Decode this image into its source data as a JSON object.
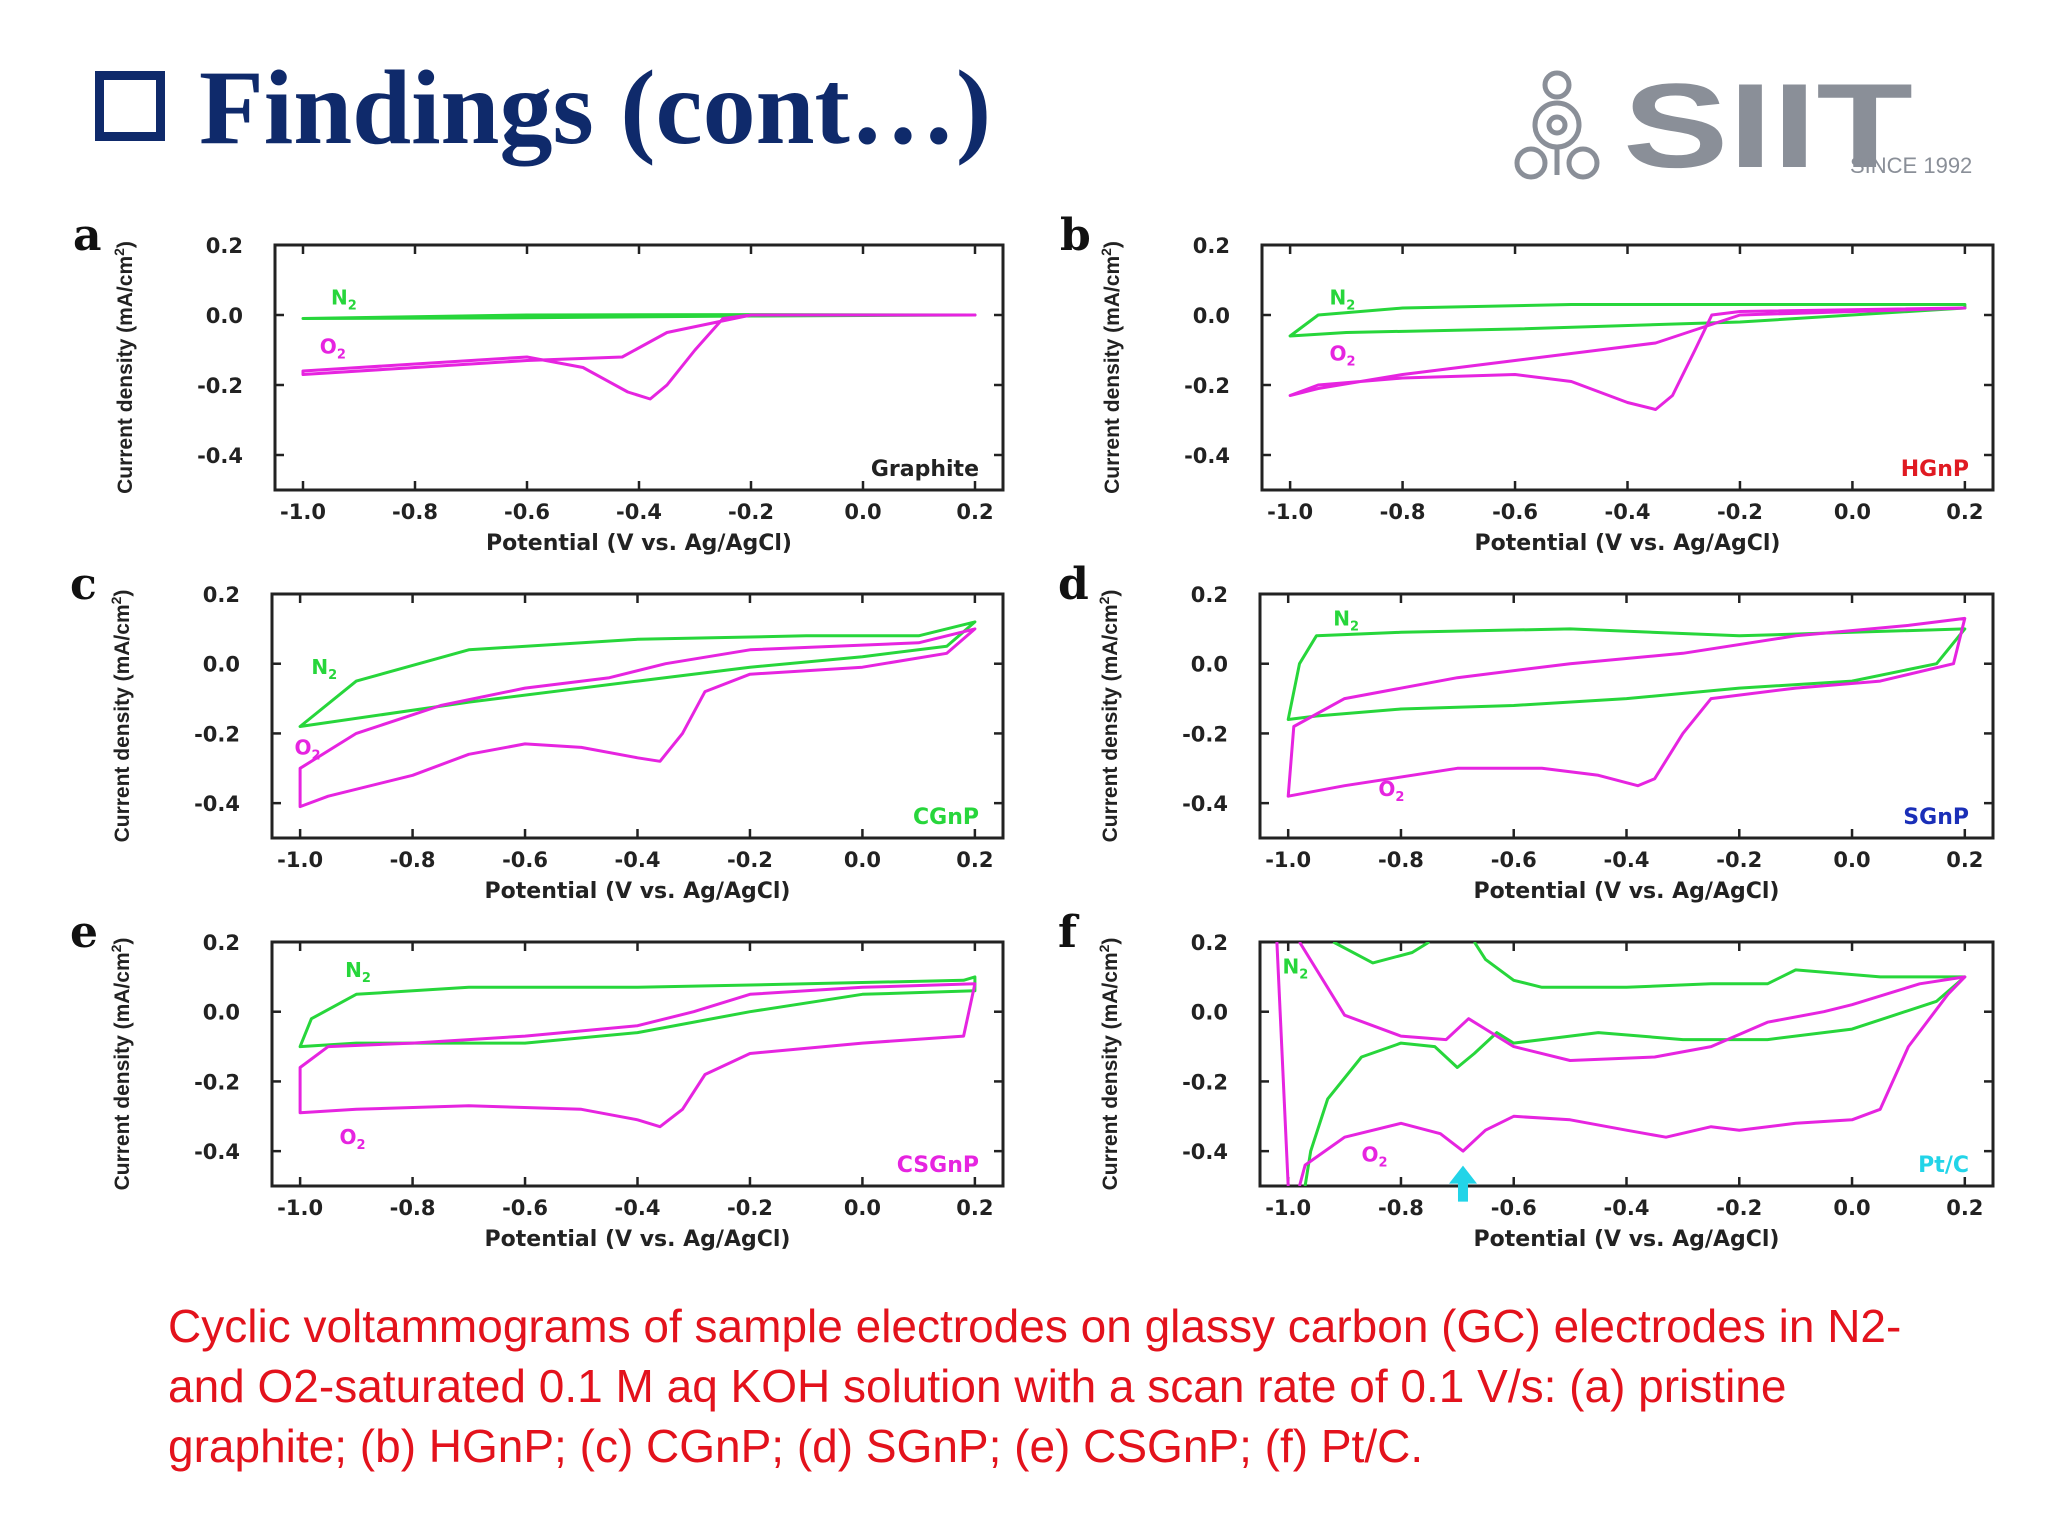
{
  "slide": {
    "title": "Findings (cont…)",
    "caption": "Cyclic voltammograms of sample electrodes on glassy carbon (GC) electrodes in N2- and O2-saturated 0.1 M aq KOH solution with a scan rate of 0.1 V/s: (a) pristine graphite; (b) HGnP; (c) CGnP; (d) SGnP; (e) CSGnP; (f) Pt/C.",
    "logo": {
      "text": "SIIT",
      "since": "SINCE 1992"
    }
  },
  "colors": {
    "title": "#0f2a6b",
    "n2": "#27d63b",
    "o2": "#e624e0",
    "caption": "#e3121c",
    "arrow": "#22d4e8"
  },
  "axis_text": {
    "xlabel": "Potential (V vs. Ag/AgCl)",
    "ylabel": "Current density (mA/cm",
    "ylabel_sup": "2",
    "ylabel_close": ")",
    "xticks": [
      "-1.0",
      "-0.8",
      "-0.6",
      "-0.4",
      "-0.2",
      "0.0",
      "0.2"
    ],
    "yticks": [
      "0.2",
      "0.0",
      "-0.2",
      "-0.4"
    ]
  },
  "chart_data": [
    {
      "panel": "a",
      "type": "line",
      "sample": "Graphite",
      "sample_color": "#222222",
      "xlim": [
        -1.05,
        0.25
      ],
      "ylim": [
        -0.5,
        0.2
      ],
      "series": [
        {
          "name": "N2",
          "loop": true,
          "points": [
            [
              -1.0,
              -0.01
            ],
            [
              -0.6,
              -0.008
            ],
            [
              -0.2,
              -0.003
            ],
            [
              0.2,
              0.0
            ],
            [
              -0.2,
              0.001
            ],
            [
              -0.6,
              0.0
            ],
            [
              -1.0,
              -0.01
            ]
          ]
        },
        {
          "name": "O2",
          "loop": true,
          "points": [
            [
              -1.0,
              -0.16
            ],
            [
              -0.9,
              -0.15
            ],
            [
              -0.7,
              -0.13
            ],
            [
              -0.6,
              -0.12
            ],
            [
              -0.5,
              -0.15
            ],
            [
              -0.42,
              -0.22
            ],
            [
              -0.38,
              -0.24
            ],
            [
              -0.35,
              -0.2
            ],
            [
              -0.3,
              -0.1
            ],
            [
              -0.25,
              -0.01
            ],
            [
              -0.2,
              0.0
            ],
            [
              0.2,
              0.0
            ],
            [
              -0.2,
              0.0
            ],
            [
              -0.35,
              -0.05
            ],
            [
              -0.43,
              -0.12
            ],
            [
              -0.6,
              -0.13
            ],
            [
              -0.8,
              -0.15
            ],
            [
              -1.0,
              -0.17
            ]
          ]
        }
      ]
    },
    {
      "panel": "b",
      "type": "line",
      "sample": "HGnP",
      "sample_color": "#e01a22",
      "xlim": [
        -1.05,
        0.25
      ],
      "ylim": [
        -0.5,
        0.2
      ],
      "series": [
        {
          "name": "N2",
          "loop": true,
          "points": [
            [
              -1.0,
              -0.06
            ],
            [
              -0.9,
              -0.05
            ],
            [
              -0.6,
              -0.04
            ],
            [
              -0.2,
              -0.02
            ],
            [
              0.2,
              0.02
            ],
            [
              0.2,
              0.03
            ],
            [
              -0.2,
              0.03
            ],
            [
              -0.5,
              0.03
            ],
            [
              -0.8,
              0.02
            ],
            [
              -0.95,
              0.0
            ],
            [
              -1.0,
              -0.06
            ]
          ]
        },
        {
          "name": "O2",
          "loop": true,
          "points": [
            [
              -1.0,
              -0.23
            ],
            [
              -0.95,
              -0.2
            ],
            [
              -0.8,
              -0.18
            ],
            [
              -0.6,
              -0.17
            ],
            [
              -0.5,
              -0.19
            ],
            [
              -0.4,
              -0.25
            ],
            [
              -0.35,
              -0.27
            ],
            [
              -0.32,
              -0.23
            ],
            [
              -0.28,
              -0.1
            ],
            [
              -0.25,
              0.0
            ],
            [
              -0.2,
              0.01
            ],
            [
              0.2,
              0.02
            ],
            [
              -0.2,
              0.0
            ],
            [
              -0.35,
              -0.08
            ],
            [
              -0.45,
              -0.1
            ],
            [
              -0.6,
              -0.13
            ],
            [
              -0.8,
              -0.17
            ],
            [
              -0.95,
              -0.21
            ],
            [
              -1.0,
              -0.23
            ]
          ]
        }
      ]
    },
    {
      "panel": "c",
      "type": "line",
      "sample": "CGnP",
      "sample_color": "#27d63b",
      "xlim": [
        -1.05,
        0.25
      ],
      "ylim": [
        -0.5,
        0.2
      ],
      "series": [
        {
          "name": "N2",
          "loop": true,
          "points": [
            [
              -1.0,
              -0.18
            ],
            [
              -0.7,
              -0.11
            ],
            [
              -0.4,
              -0.05
            ],
            [
              -0.2,
              -0.01
            ],
            [
              0.0,
              0.02
            ],
            [
              0.15,
              0.05
            ],
            [
              0.2,
              0.12
            ],
            [
              0.1,
              0.08
            ],
            [
              -0.1,
              0.08
            ],
            [
              -0.4,
              0.07
            ],
            [
              -0.7,
              0.04
            ],
            [
              -0.9,
              -0.05
            ],
            [
              -1.0,
              -0.18
            ]
          ]
        },
        {
          "name": "O2",
          "loop": true,
          "points": [
            [
              -1.0,
              -0.41
            ],
            [
              -0.95,
              -0.38
            ],
            [
              -0.8,
              -0.32
            ],
            [
              -0.7,
              -0.26
            ],
            [
              -0.6,
              -0.23
            ],
            [
              -0.5,
              -0.24
            ],
            [
              -0.4,
              -0.27
            ],
            [
              -0.36,
              -0.28
            ],
            [
              -0.32,
              -0.2
            ],
            [
              -0.28,
              -0.08
            ],
            [
              -0.2,
              -0.03
            ],
            [
              0.0,
              -0.01
            ],
            [
              0.15,
              0.03
            ],
            [
              0.2,
              0.1
            ],
            [
              0.1,
              0.06
            ],
            [
              -0.2,
              0.04
            ],
            [
              -0.35,
              0.0
            ],
            [
              -0.45,
              -0.04
            ],
            [
              -0.6,
              -0.07
            ],
            [
              -0.75,
              -0.12
            ],
            [
              -0.9,
              -0.2
            ],
            [
              -1.0,
              -0.3
            ],
            [
              -1.0,
              -0.41
            ]
          ]
        }
      ]
    },
    {
      "panel": "d",
      "type": "line",
      "sample": "SGnP",
      "sample_color": "#1a2fb8",
      "xlim": [
        -1.05,
        0.25
      ],
      "ylim": [
        -0.5,
        0.2
      ],
      "series": [
        {
          "name": "N2",
          "loop": true,
          "points": [
            [
              -1.0,
              -0.16
            ],
            [
              -0.95,
              -0.15
            ],
            [
              -0.8,
              -0.13
            ],
            [
              -0.6,
              -0.12
            ],
            [
              -0.4,
              -0.1
            ],
            [
              -0.2,
              -0.07
            ],
            [
              0.0,
              -0.05
            ],
            [
              0.15,
              0.0
            ],
            [
              0.2,
              0.1
            ],
            [
              0.0,
              0.09
            ],
            [
              -0.2,
              0.08
            ],
            [
              -0.5,
              0.1
            ],
            [
              -0.8,
              0.09
            ],
            [
              -0.95,
              0.08
            ],
            [
              -0.98,
              0.0
            ],
            [
              -1.0,
              -0.16
            ]
          ]
        },
        {
          "name": "O2",
          "loop": true,
          "points": [
            [
              -1.0,
              -0.38
            ],
            [
              -0.9,
              -0.35
            ],
            [
              -0.7,
              -0.3
            ],
            [
              -0.55,
              -0.3
            ],
            [
              -0.45,
              -0.32
            ],
            [
              -0.38,
              -0.35
            ],
            [
              -0.35,
              -0.33
            ],
            [
              -0.3,
              -0.2
            ],
            [
              -0.25,
              -0.1
            ],
            [
              -0.1,
              -0.07
            ],
            [
              0.05,
              -0.05
            ],
            [
              0.18,
              0.0
            ],
            [
              0.2,
              0.13
            ],
            [
              0.1,
              0.11
            ],
            [
              -0.1,
              0.08
            ],
            [
              -0.3,
              0.03
            ],
            [
              -0.5,
              0.0
            ],
            [
              -0.7,
              -0.04
            ],
            [
              -0.9,
              -0.1
            ],
            [
              -0.99,
              -0.18
            ],
            [
              -1.0,
              -0.38
            ]
          ]
        }
      ]
    },
    {
      "panel": "e",
      "type": "line",
      "sample": "CSGnP",
      "sample_color": "#e624e0",
      "xlim": [
        -1.05,
        0.25
      ],
      "ylim": [
        -0.5,
        0.2
      ],
      "series": [
        {
          "name": "N2",
          "loop": true,
          "points": [
            [
              -1.0,
              -0.1
            ],
            [
              -0.98,
              -0.02
            ],
            [
              -0.9,
              0.05
            ],
            [
              -0.7,
              0.07
            ],
            [
              -0.4,
              0.07
            ],
            [
              -0.1,
              0.08
            ],
            [
              0.18,
              0.09
            ],
            [
              0.2,
              0.1
            ],
            [
              0.2,
              0.06
            ],
            [
              0.0,
              0.05
            ],
            [
              -0.2,
              0.0
            ],
            [
              -0.4,
              -0.06
            ],
            [
              -0.6,
              -0.09
            ],
            [
              -0.9,
              -0.09
            ],
            [
              -1.0,
              -0.1
            ]
          ]
        },
        {
          "name": "O2",
          "loop": true,
          "points": [
            [
              -1.0,
              -0.29
            ],
            [
              -0.9,
              -0.28
            ],
            [
              -0.7,
              -0.27
            ],
            [
              -0.5,
              -0.28
            ],
            [
              -0.4,
              -0.31
            ],
            [
              -0.36,
              -0.33
            ],
            [
              -0.32,
              -0.28
            ],
            [
              -0.28,
              -0.18
            ],
            [
              -0.2,
              -0.12
            ],
            [
              0.0,
              -0.09
            ],
            [
              0.18,
              -0.07
            ],
            [
              0.2,
              0.08
            ],
            [
              0.0,
              0.07
            ],
            [
              -0.2,
              0.05
            ],
            [
              -0.3,
              0.0
            ],
            [
              -0.4,
              -0.04
            ],
            [
              -0.6,
              -0.07
            ],
            [
              -0.8,
              -0.09
            ],
            [
              -0.95,
              -0.1
            ],
            [
              -1.0,
              -0.16
            ],
            [
              -1.0,
              -0.29
            ]
          ]
        }
      ]
    },
    {
      "panel": "f",
      "type": "line",
      "sample": "Pt/C",
      "sample_color": "#22d4e8",
      "xlim": [
        -1.05,
        0.25
      ],
      "ylim": [
        -0.5,
        0.2
      ],
      "annotations": [
        {
          "type": "arrow",
          "x": -0.69,
          "y": -0.43
        }
      ],
      "series": [
        {
          "name": "N2",
          "loop": false,
          "points": [
            [
              -0.97,
              -0.5
            ],
            [
              -0.96,
              -0.4
            ],
            [
              -0.93,
              -0.25
            ],
            [
              -0.87,
              -0.13
            ],
            [
              -0.8,
              -0.09
            ],
            [
              -0.74,
              -0.1
            ],
            [
              -0.7,
              -0.16
            ],
            [
              -0.67,
              -0.12
            ],
            [
              -0.63,
              -0.06
            ],
            [
              -0.6,
              -0.09
            ],
            [
              -0.55,
              -0.08
            ],
            [
              -0.45,
              -0.06
            ],
            [
              -0.3,
              -0.08
            ],
            [
              -0.15,
              -0.08
            ],
            [
              0.0,
              -0.05
            ],
            [
              0.15,
              0.03
            ],
            [
              0.2,
              0.1
            ],
            [
              0.05,
              0.1
            ],
            [
              -0.1,
              0.12
            ],
            [
              -0.15,
              0.08
            ],
            [
              -0.25,
              0.08
            ],
            [
              -0.4,
              0.07
            ],
            [
              -0.55,
              0.07
            ],
            [
              -0.6,
              0.09
            ],
            [
              -0.65,
              0.15
            ],
            [
              -0.67,
              0.2
            ]
          ]
        },
        {
          "name": "N2-b",
          "loop": false,
          "points": [
            [
              -0.75,
              0.2
            ],
            [
              -0.78,
              0.17
            ],
            [
              -0.85,
              0.14
            ],
            [
              -0.92,
              0.2
            ]
          ]
        },
        {
          "name": "O2",
          "loop": false,
          "points": [
            [
              -0.98,
              -0.5
            ],
            [
              -0.97,
              -0.44
            ],
            [
              -0.9,
              -0.36
            ],
            [
              -0.8,
              -0.32
            ],
            [
              -0.73,
              -0.35
            ],
            [
              -0.69,
              -0.4
            ],
            [
              -0.65,
              -0.34
            ],
            [
              -0.6,
              -0.3
            ],
            [
              -0.5,
              -0.31
            ],
            [
              -0.4,
              -0.34
            ],
            [
              -0.33,
              -0.36
            ],
            [
              -0.25,
              -0.33
            ],
            [
              -0.2,
              -0.34
            ],
            [
              -0.1,
              -0.32
            ],
            [
              0.0,
              -0.31
            ],
            [
              0.05,
              -0.28
            ],
            [
              0.1,
              -0.1
            ],
            [
              0.17,
              0.05
            ],
            [
              0.2,
              0.1
            ],
            [
              0.12,
              0.08
            ],
            [
              0.0,
              0.02
            ],
            [
              -0.05,
              0.0
            ],
            [
              -0.15,
              -0.03
            ],
            [
              -0.25,
              -0.1
            ],
            [
              -0.35,
              -0.13
            ],
            [
              -0.5,
              -0.14
            ],
            [
              -0.6,
              -0.1
            ],
            [
              -0.65,
              -0.05
            ],
            [
              -0.68,
              -0.02
            ],
            [
              -0.72,
              -0.08
            ],
            [
              -0.8,
              -0.07
            ],
            [
              -0.9,
              -0.01
            ],
            [
              -0.98,
              0.2
            ]
          ]
        },
        {
          "name": "O2-b",
          "loop": false,
          "points": [
            [
              -1.0,
              -0.5
            ],
            [
              -1.02,
              0.2
            ]
          ]
        }
      ]
    }
  ]
}
